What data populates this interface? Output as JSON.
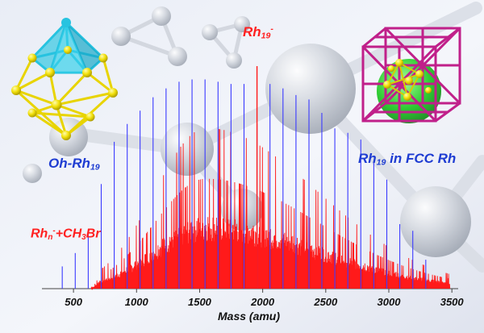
{
  "chart_data": {
    "type": "bar",
    "xlabel": "Mass (amu)",
    "xlim": [
      250,
      3550
    ],
    "x_ticks": [
      "500",
      "1000",
      "1500",
      "2000",
      "2500",
      "3000",
      "3500"
    ],
    "series": [
      {
        "name": "Rh_n^- peaks",
        "color": "#3a3aff",
        "x": [
          411,
          514,
          617,
          720,
          823,
          926,
          1028,
          1131,
          1234,
          1337,
          1440,
          1543,
          1646,
          1749,
          1852,
          1955,
          2058,
          2161,
          2264,
          2367,
          2469,
          2572,
          2675,
          2778,
          2881,
          2984,
          3087,
          3190,
          3293
        ],
        "y": [
          0.1,
          0.16,
          0.26,
          0.47,
          0.66,
          0.74,
          0.8,
          0.86,
          0.9,
          0.93,
          0.94,
          0.94,
          0.93,
          0.92,
          0.92,
          0.74,
          0.92,
          0.9,
          0.87,
          0.85,
          0.79,
          0.72,
          0.7,
          0.67,
          0.57,
          0.49,
          0.29,
          0.26,
          0.13
        ]
      },
      {
        "name": "Rh_n^- + CH3Br spectrum",
        "color": "#ff1a1a",
        "envelope": {
          "start": 700,
          "end": 3400,
          "peak_mass": 1550,
          "peak_height": 0.38
        }
      },
      {
        "name": "Rh19-",
        "color": "#ff1a1a",
        "x": [
          1955
        ],
        "y": [
          1.0
        ]
      }
    ],
    "annotations": {
      "rh19_peak": {
        "base": "Rh",
        "sub": "19",
        "sup": "-"
      },
      "reaction": {
        "base": "Rh",
        "sub1": "n",
        "sup": "-",
        "mid": "+CH",
        "sub2": "3",
        "tail": "Br"
      }
    }
  },
  "structures": {
    "left_label": {
      "base": "Oh-Rh",
      "sub": "19"
    },
    "right_label": {
      "prefix": "Rh",
      "sub": "19",
      "suffix": " in FCC Rh"
    }
  },
  "colors": {
    "blue_peaks": "#3a3aff",
    "red_spectrum": "#ff1a1a",
    "label_blue": "#1e3cd2",
    "label_red": "#ff2020",
    "cap_cyan": "#27c3e0",
    "gold": "#f2e10a",
    "magenta": "#c0208a",
    "green": "#19c81d"
  }
}
